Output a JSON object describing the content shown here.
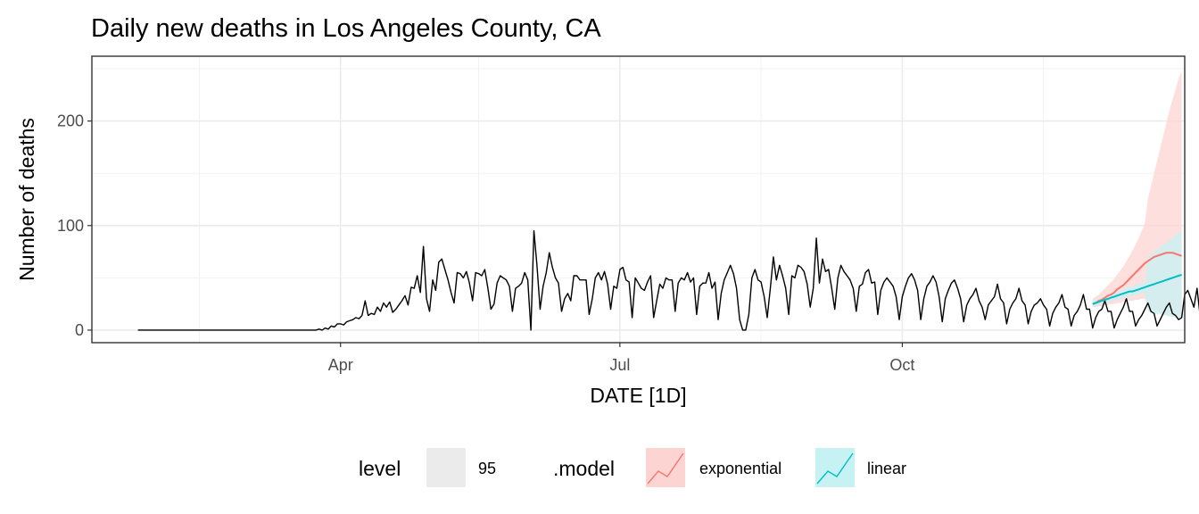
{
  "chart_data": {
    "type": "line",
    "title": "Daily new deaths in Los Angeles County, CA",
    "xlabel": "DATE [1D]",
    "ylabel": "Number of deaths",
    "x_start": "2020-01-26",
    "x_end": "2020-12-31",
    "xlim": [
      "2020-01-11",
      "2021-01-01"
    ],
    "ylim": [
      -12,
      262
    ],
    "x_ticks": [
      {
        "date": "2020-04-01",
        "label": "Apr"
      },
      {
        "date": "2020-07-01",
        "label": "Jul"
      },
      {
        "date": "2020-10-01",
        "label": "Oct"
      }
    ],
    "x_minor_ticks": [
      "2020-02-15",
      "2020-05-16",
      "2020-08-16",
      "2020-11-16"
    ],
    "y_ticks": [
      0,
      100,
      200
    ],
    "y_minor_ticks": [
      50,
      150,
      250
    ],
    "grid": true,
    "legend_position": "bottom",
    "series": [
      {
        "name": "observed",
        "color": "#000000",
        "start": "2020-01-26",
        "values": [
          0,
          0,
          0,
          0,
          0,
          0,
          0,
          0,
          0,
          0,
          0,
          0,
          0,
          0,
          0,
          0,
          0,
          0,
          0,
          0,
          0,
          0,
          0,
          0,
          0,
          0,
          0,
          0,
          0,
          0,
          0,
          0,
          0,
          0,
          0,
          0,
          0,
          0,
          0,
          0,
          0,
          0,
          0,
          0,
          0,
          0,
          0,
          0,
          0,
          0,
          0,
          0,
          0,
          0,
          0,
          0,
          0,
          0,
          0,
          1,
          0,
          2,
          1,
          4,
          3,
          6,
          6,
          5,
          8,
          9,
          10,
          12,
          11,
          14,
          28,
          14,
          16,
          15,
          22,
          18,
          26,
          22,
          27,
          17,
          20,
          24,
          28,
          33,
          24,
          41,
          40,
          52,
          36,
          80,
          30,
          18,
          48,
          38,
          65,
          68,
          58,
          48,
          36,
          26,
          55,
          54,
          50,
          56,
          45,
          28,
          55,
          54,
          52,
          58,
          40,
          20,
          25,
          45,
          52,
          50,
          48,
          42,
          18,
          40,
          42,
          45,
          55,
          48,
          0,
          95,
          62,
          20,
          42,
          55,
          74,
          60,
          50,
          45,
          18,
          30,
          35,
          28,
          52,
          52,
          48,
          48,
          48,
          15,
          30,
          50,
          55,
          48,
          56,
          44,
          20,
          42,
          40,
          58,
          60,
          48,
          46,
          12,
          50,
          45,
          40,
          38,
          46,
          52,
          12,
          28,
          44,
          40,
          50,
          48,
          48,
          18,
          45,
          50,
          48,
          55,
          46,
          50,
          15,
          42,
          45,
          45,
          55,
          40,
          46,
          10,
          35,
          48,
          55,
          62,
          54,
          40,
          10,
          0,
          0,
          15,
          50,
          58,
          48,
          46,
          32,
          12,
          40,
          70,
          48,
          62,
          52,
          40,
          15,
          52,
          50,
          62,
          60,
          56,
          44,
          22,
          40,
          88,
          45,
          68,
          56,
          58,
          40,
          20,
          50,
          62,
          56,
          52,
          48,
          40,
          18,
          42,
          44,
          55,
          58,
          45,
          46,
          15,
          38,
          46,
          50,
          46,
          42,
          32,
          10,
          32,
          42,
          50,
          54,
          48,
          38,
          10,
          30,
          42,
          46,
          52,
          46,
          32,
          8,
          30,
          38,
          45,
          48,
          40,
          30,
          8,
          24,
          30,
          34,
          40,
          28,
          22,
          10,
          24,
          28,
          32,
          44,
          30,
          26,
          6,
          20,
          26,
          30,
          40,
          28,
          24,
          6,
          18,
          24,
          26,
          30,
          24,
          20,
          4,
          16,
          22,
          26,
          34,
          22,
          20,
          4,
          14,
          18,
          24,
          34,
          20,
          20,
          2,
          12,
          18,
          20,
          28,
          18,
          18,
          2,
          10,
          16,
          22,
          30,
          18,
          18,
          4,
          10,
          14,
          20,
          26,
          18,
          16,
          4,
          10,
          16,
          22,
          26,
          16,
          14,
          10,
          12,
          34,
          38,
          30,
          22,
          40,
          14,
          28,
          32,
          30,
          50,
          44,
          24,
          28,
          38,
          42,
          44,
          58,
          40,
          38,
          42
        ]
      },
      {
        "name": "exponential",
        "color": "#F8766D",
        "ribbon_color": "#FCD5D2",
        "start": "2020-12-02",
        "values": [
          25,
          26,
          28,
          29,
          31,
          33,
          34,
          36,
          39,
          41,
          43,
          46,
          49,
          52,
          55,
          58,
          61,
          64,
          66,
          68,
          70,
          71,
          72,
          73,
          74,
          74,
          74,
          73,
          72,
          71
        ],
        "lower": [
          22,
          22,
          23,
          23,
          24,
          24,
          25,
          25,
          26,
          26,
          27,
          27,
          28,
          28,
          29,
          29,
          30,
          30,
          22,
          20,
          18,
          17,
          16,
          15,
          14,
          14,
          13,
          13,
          12,
          12
        ],
        "upper": [
          30,
          32,
          34,
          37,
          40,
          43,
          46,
          49,
          53,
          57,
          61,
          66,
          71,
          76,
          82,
          88,
          95,
          102,
          125,
          138,
          150,
          162,
          174,
          186,
          198,
          210,
          220,
          230,
          240,
          248
        ]
      },
      {
        "name": "linear",
        "color": "#00BFC4",
        "ribbon_color": "#C7F2F3",
        "start": "2020-12-02",
        "values": [
          25,
          26,
          27,
          28,
          29,
          30,
          31,
          32,
          33,
          34,
          35,
          36,
          37,
          37,
          38,
          39,
          40,
          41,
          42,
          43,
          44,
          45,
          46,
          47,
          48,
          49,
          50,
          51,
          52,
          53
        ],
        "lower": [
          22,
          23,
          24,
          25,
          26,
          27,
          27,
          28,
          29,
          30,
          31,
          31,
          32,
          33,
          33,
          34,
          35,
          35,
          18,
          17,
          16,
          15,
          15,
          14,
          14,
          13,
          13,
          12,
          12,
          11
        ],
        "upper": [
          28,
          29,
          30,
          31,
          32,
          33,
          34,
          36,
          37,
          38,
          39,
          40,
          41,
          42,
          43,
          44,
          45,
          46,
          70,
          72,
          75,
          77,
          79,
          82,
          84,
          86,
          88,
          91,
          93,
          95
        ]
      }
    ],
    "legend": {
      "level_title": "level",
      "level_value": "95",
      "model_title": ".model",
      "model_items": [
        "exponential",
        "linear"
      ]
    }
  }
}
